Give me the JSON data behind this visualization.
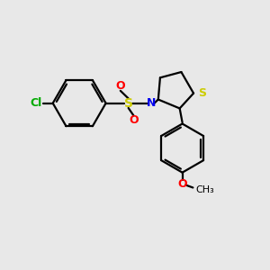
{
  "background_color": "#e8e8e8",
  "atom_colors": {
    "C": "#000000",
    "N": "#0000ee",
    "S_thia": "#cccc00",
    "S_sulfonyl": "#cccc00",
    "O": "#ff0000",
    "Cl": "#00aa00"
  },
  "line_color": "#000000",
  "line_width": 1.6,
  "font_size": 9,
  "fig_size": [
    3.0,
    3.0
  ],
  "dpi": 100,
  "xlim": [
    0,
    10
  ],
  "ylim": [
    0,
    10
  ]
}
